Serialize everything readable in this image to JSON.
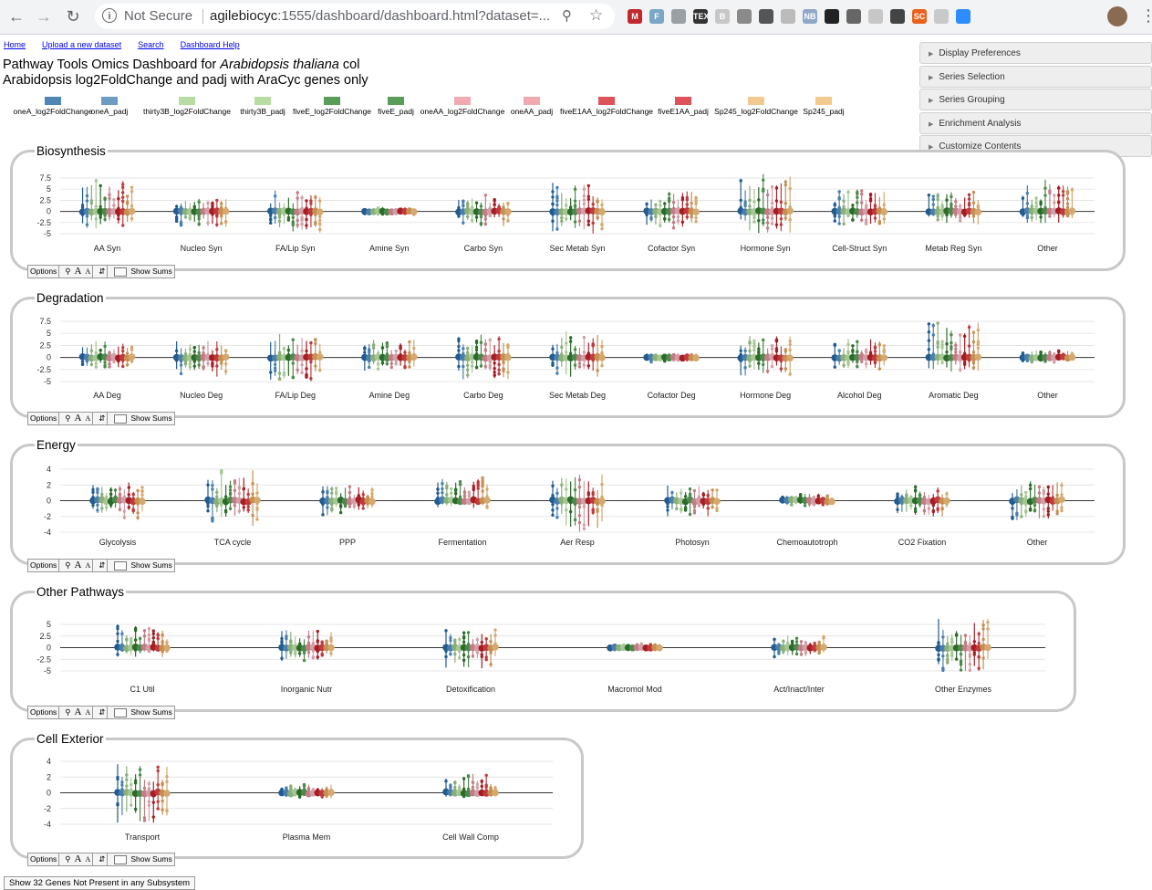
{
  "browser": {
    "not_secure": "Not Secure",
    "url_host": "agilebiocyc",
    "url_rest": ":1555/dashboard/dashboard.html?dataset=...",
    "extensions": [
      {
        "name": "m-icon",
        "label": "M",
        "color": "#c0282d"
      },
      {
        "name": "f-icon",
        "label": "F",
        "color": "#7aa7c7"
      },
      {
        "name": "doc-icon",
        "label": "",
        "color": "#9aa0a6"
      },
      {
        "name": "tex-icon",
        "label": "TEX",
        "color": "#333333"
      },
      {
        "name": "b-icon",
        "label": "B",
        "color": "#c7c7c7"
      },
      {
        "name": "image-icon",
        "label": "",
        "color": "#8a8a8a"
      },
      {
        "name": "pocket-icon",
        "label": "",
        "color": "#555555"
      },
      {
        "name": "circle-icon",
        "label": "",
        "color": "#bbbbbc"
      },
      {
        "name": "nb-icon",
        "label": "NB",
        "color": "#8fa8c8"
      },
      {
        "name": "lock-icon",
        "label": "",
        "color": "#222222"
      },
      {
        "name": "code-icon",
        "label": "",
        "color": "#666666"
      },
      {
        "name": "chat-icon",
        "label": "",
        "color": "#c7c7c7"
      },
      {
        "name": "bulb-icon",
        "label": "",
        "color": "#444444"
      },
      {
        "name": "sc-icon",
        "label": "SC",
        "color": "#e8611a"
      },
      {
        "name": "shield-icon",
        "label": "",
        "color": "#c9c9c9"
      },
      {
        "name": "video-icon",
        "label": "",
        "color": "#2d8cff"
      }
    ]
  },
  "nav": {
    "home": "Home",
    "upload": "Upload a new dataset",
    "search": "Search",
    "help": "Dashboard Help"
  },
  "title": {
    "line1_pre": "Pathway Tools Omics Dashboard for ",
    "organism": "Arabidopsis thaliana",
    "line1_post": " col",
    "line2": "Arabidopsis log2FoldChange and padj with AraCyc genes only"
  },
  "legend": [
    {
      "label": "oneA_log2FoldChange",
      "color": "#4f86b5"
    },
    {
      "label": "oneA_padj",
      "color": "#6e9bc2"
    },
    {
      "label": "thirty3B_log2FoldChange",
      "color": "#b9dba4"
    },
    {
      "label": "thirty3B_padj",
      "color": "#b9dba4"
    },
    {
      "label": "fiveE_log2FoldChange",
      "color": "#5a9c5a"
    },
    {
      "label": "fiveE_padj",
      "color": "#5a9c5a"
    },
    {
      "label": "oneAA_log2FoldChange",
      "color": "#f2aab0"
    },
    {
      "label": "oneAA_padj",
      "color": "#f2aab0"
    },
    {
      "label": "fiveE1AA_log2FoldChange",
      "color": "#dd5358"
    },
    {
      "label": "fiveE1AA_padj",
      "color": "#dd5358"
    },
    {
      "label": "Sp245_log2FoldChange",
      "color": "#f2c98e"
    },
    {
      "label": "Sp245_padj",
      "color": "#f2c98e"
    }
  ],
  "series_colors": [
    "#215b8f",
    "#4a7fad",
    "#8aaf78",
    "#a6c794",
    "#2a6a2a",
    "#4b8a4b",
    "#c47b85",
    "#d0a0a6",
    "#a51c22",
    "#bf3a3e",
    "#c48f4f",
    "#d5a86f"
  ],
  "right_panel": [
    "Display Preferences",
    "Series Selection",
    "Series Grouping",
    "Enrichment Analysis",
    "Customize Contents"
  ],
  "options_bar": {
    "options": "Options",
    "zoom_a": "A",
    "zoom_small": "A",
    "show_sums": "Show Sums"
  },
  "bottom_button": "Show 32 Genes Not Present in any Subsystem",
  "chart_data": [
    {
      "type": "scatter",
      "title": "Biosynthesis",
      "yticks": [
        "7.5",
        "5",
        "2.5",
        "0",
        "-2.5",
        "-5"
      ],
      "ylim": [
        -5,
        7.5
      ],
      "categories": [
        "AA Syn",
        "Nucleo Syn",
        "FA/Lip Syn",
        "Amine Syn",
        "Carbo Syn",
        "Sec Metab Syn",
        "Cofactor Syn",
        "Hormone Syn",
        "Cell-Struct Syn",
        "Metab Reg Syn",
        "Other"
      ],
      "ranges": [
        [
          -4,
          7.5
        ],
        [
          -3.5,
          3.5
        ],
        [
          -5,
          5
        ],
        [
          -1,
          1
        ],
        [
          -3.5,
          4
        ],
        [
          -5,
          6.5
        ],
        [
          -4,
          5
        ],
        [
          -5,
          8.5
        ],
        [
          -3,
          5
        ],
        [
          -3,
          4.5
        ],
        [
          -3,
          7.5
        ]
      ]
    },
    {
      "type": "scatter",
      "title": "Degradation",
      "yticks": [
        "7.5",
        "5",
        "2.5",
        "0",
        "-2.5",
        "-5"
      ],
      "ylim": [
        -5,
        7.5
      ],
      "categories": [
        "AA Deg",
        "Nucleo Deg",
        "FA/Lip Deg",
        "Amine Deg",
        "Carbo Deg",
        "Sec Metab Deg",
        "Cofactor Deg",
        "Hormone Deg",
        "Alcohol Deg",
        "Aromatic Deg",
        "Other"
      ],
      "ranges": [
        [
          -2.5,
          3.5
        ],
        [
          -4,
          3.5
        ],
        [
          -5,
          6
        ],
        [
          -3,
          4
        ],
        [
          -5,
          5
        ],
        [
          -4.5,
          5.5
        ],
        [
          -1,
          1
        ],
        [
          -4.5,
          4.5
        ],
        [
          -2.5,
          4
        ],
        [
          -4,
          7.5
        ],
        [
          -1.2,
          1.5
        ]
      ]
    },
    {
      "type": "scatter",
      "title": "Energy",
      "yticks": [
        "4",
        "2",
        "0",
        "-2",
        "-4"
      ],
      "ylim": [
        -4,
        4
      ],
      "categories": [
        "Glycolysis",
        "TCA cycle",
        "PPP",
        "Fermentation",
        "Aer Resp",
        "Photosyn",
        "Chemoautotroph",
        "CO2 Fixation",
        "Other"
      ],
      "ranges": [
        [
          -2.5,
          2.5
        ],
        [
          -3.5,
          4
        ],
        [
          -2,
          2
        ],
        [
          -1,
          3
        ],
        [
          -4,
          3.5
        ],
        [
          -2,
          2
        ],
        [
          -0.8,
          1
        ],
        [
          -2,
          2
        ],
        [
          -2.5,
          2.5
        ]
      ]
    },
    {
      "type": "scatter",
      "title": "Other Pathways",
      "yticks": [
        "5",
        "2.5",
        "0",
        "-2.5",
        "-5"
      ],
      "ylim": [
        -5,
        5
      ],
      "categories": [
        "C1 Util",
        "Inorganic Nutr",
        "Detoxification",
        "Macromol Mod",
        "Act/Inact/Inter",
        "Other Enzymes"
      ],
      "ranges": [
        [
          -2,
          5
        ],
        [
          -3,
          4
        ],
        [
          -4.5,
          4
        ],
        [
          -0.5,
          1
        ],
        [
          -2,
          3
        ],
        [
          -6,
          7
        ]
      ]
    },
    {
      "type": "scatter",
      "title": "Cell Exterior",
      "yticks": [
        "4",
        "2",
        "0",
        "-2",
        "-4"
      ],
      "ylim": [
        -4,
        4
      ],
      "categories": [
        "Transport",
        "Plasma Mem",
        "Cell Wall Comp"
      ],
      "ranges": [
        [
          -4,
          4
        ],
        [
          -0.8,
          1.2
        ],
        [
          -0.5,
          2.5
        ]
      ]
    }
  ]
}
